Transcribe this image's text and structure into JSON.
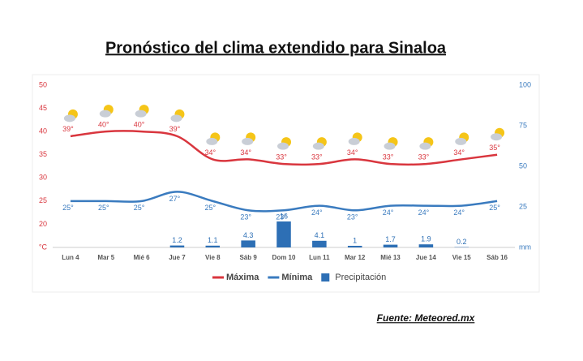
{
  "chart_data": {
    "type": "weather",
    "title": "Pronóstico del clima extendido para Sinaloa",
    "source": "Fuente: Meteored.mx",
    "categories": [
      "Lun 4",
      "Mar 5",
      "Mié 6",
      "Jue 7",
      "Vie 8",
      "Sáb 9",
      "Dom 10",
      "Lun 11",
      "Mar 12",
      "Mié 13",
      "Jue 14",
      "Vie 15",
      "Sáb 16"
    ],
    "ylim": [
      15,
      50
    ],
    "yticks": [
      {
        "value": 15,
        "label": "°C"
      },
      20,
      25,
      30,
      35,
      40,
      45,
      50
    ],
    "y2lim": [
      0,
      100
    ],
    "y2ticks": [
      {
        "value": 0,
        "label": "mm"
      },
      25,
      50,
      75,
      100
    ],
    "series": [
      {
        "name": "Máxima",
        "type": "line",
        "color": "#d9363e",
        "values": [
          39,
          40,
          40,
          39,
          34,
          34,
          33,
          33,
          34,
          33,
          33,
          34,
          35
        ],
        "value_labels": [
          "39°",
          "40°",
          "40°",
          "39°",
          "34°",
          "34°",
          "33°",
          "33°",
          "34°",
          "33°",
          "33°",
          "34°",
          "35°"
        ]
      },
      {
        "name": "Mínima",
        "type": "line",
        "color": "#3a7bbf",
        "values": [
          25,
          25,
          25,
          27,
          25,
          23,
          23,
          24,
          23,
          24,
          24,
          24,
          25
        ],
        "value_labels": [
          "25°",
          "25°",
          "25°",
          "27°",
          "25°",
          "23°",
          "23°",
          "24°",
          "23°",
          "24°",
          "24°",
          "24°",
          "25°"
        ]
      },
      {
        "name": "Precipitación",
        "type": "bar",
        "axis": "y2",
        "color": "#2d6fb5",
        "values": [
          null,
          null,
          null,
          1.2,
          1.1,
          4.3,
          16,
          4.1,
          1,
          1.7,
          1.9,
          0.2,
          null
        ]
      }
    ]
  }
}
